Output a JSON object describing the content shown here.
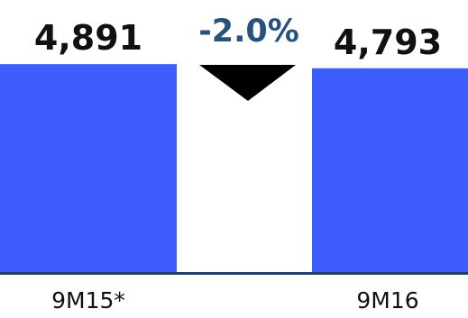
{
  "chart_data": {
    "type": "bar",
    "categories": [
      "9M15*",
      "9M16"
    ],
    "values": [
      4891,
      4793
    ],
    "value_labels": [
      "4,891",
      "4,793"
    ],
    "ylim": [
      0,
      5000
    ],
    "change": {
      "label": "-2.0%",
      "direction": "down"
    },
    "grid": false,
    "legend": "none"
  },
  "colors": {
    "bar": "#3d5efc",
    "axis": "#1f3f66",
    "change_text": "#27527e",
    "arrow": "#000000",
    "label_text": "#111111"
  }
}
